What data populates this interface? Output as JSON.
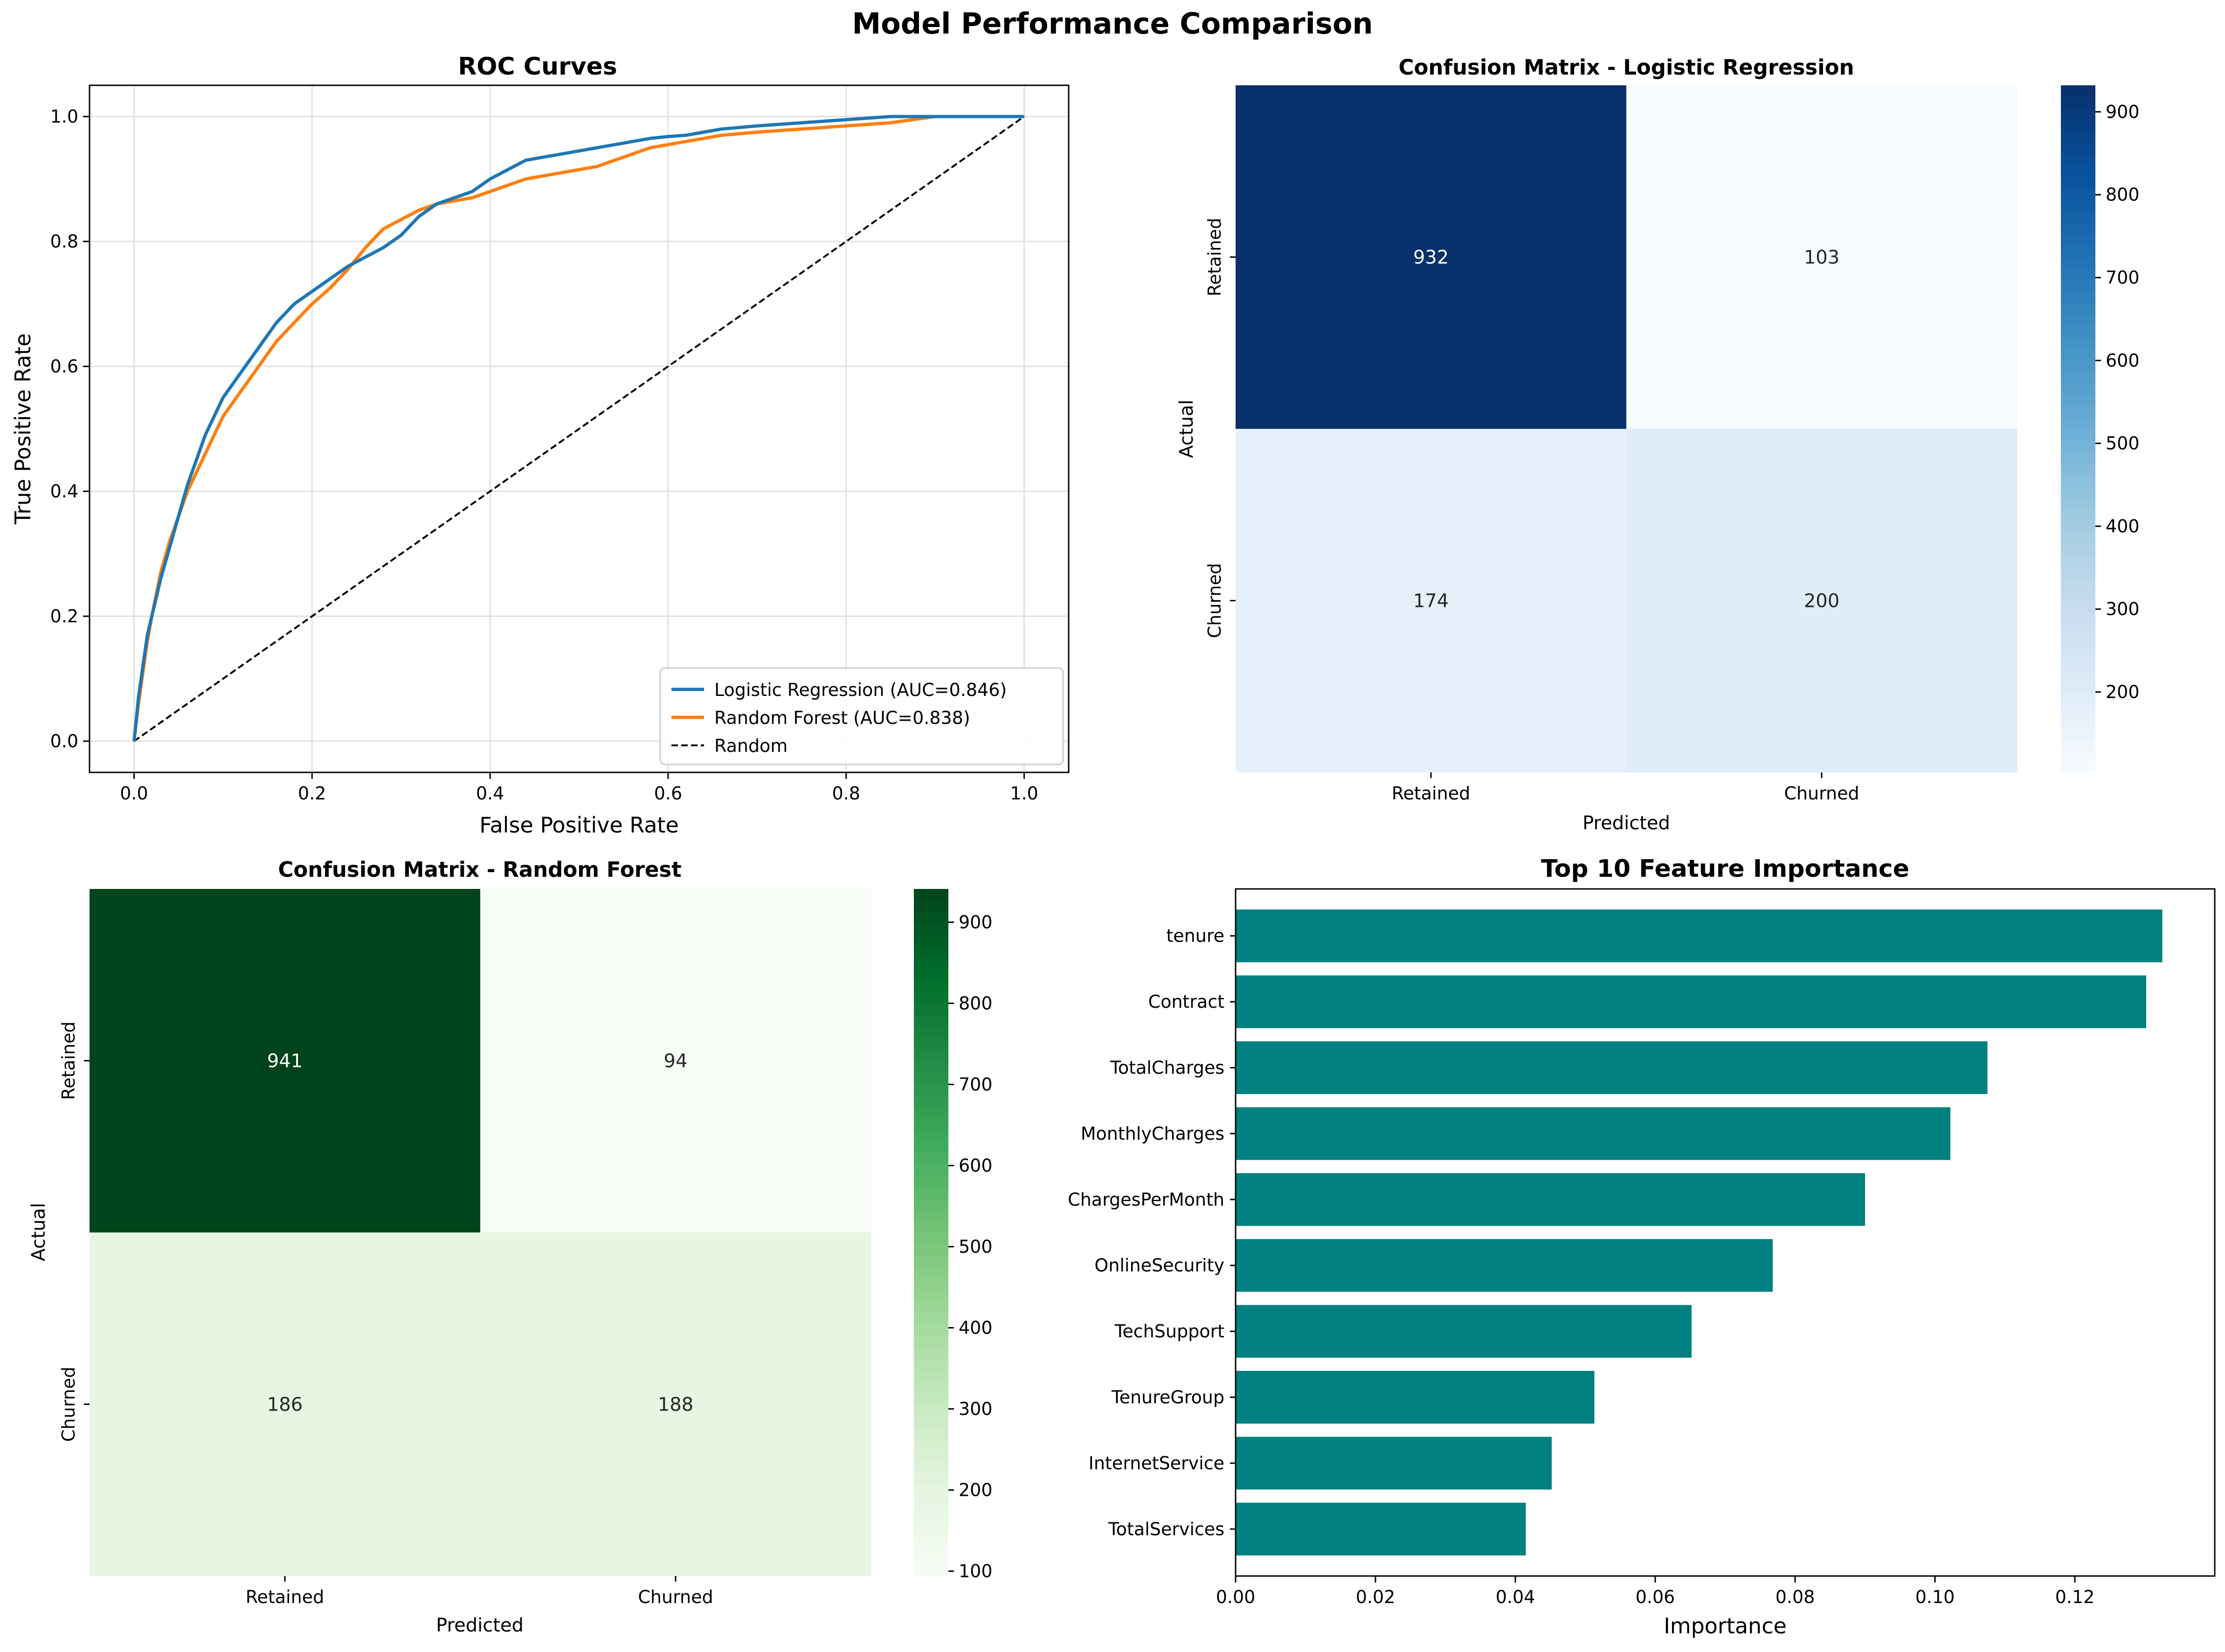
{
  "figure": {
    "title": "Model Performance Comparison"
  },
  "chart_data": [
    {
      "type": "line",
      "title": "ROC Curves",
      "xlabel": "False Positive Rate",
      "ylabel": "True Positive Rate",
      "xlim": [
        -0.05,
        1.05
      ],
      "ylim": [
        -0.05,
        1.05
      ],
      "x_ticks": [
        "0.0",
        "0.2",
        "0.4",
        "0.6",
        "0.8",
        "1.0"
      ],
      "y_ticks": [
        "0.0",
        "0.2",
        "0.4",
        "0.6",
        "0.8",
        "1.0"
      ],
      "grid": true,
      "legend": "lower-right",
      "series": [
        {
          "name": "Logistic Regression (AUC=0.846)",
          "color": "#1f77b4",
          "style": "solid",
          "x": [
            0,
            0.005,
            0.01,
            0.015,
            0.02,
            0.03,
            0.04,
            0.05,
            0.06,
            0.07,
            0.08,
            0.09,
            0.1,
            0.12,
            0.14,
            0.16,
            0.18,
            0.2,
            0.22,
            0.24,
            0.26,
            0.28,
            0.3,
            0.32,
            0.34,
            0.36,
            0.38,
            0.4,
            0.42,
            0.44,
            0.46,
            0.48,
            0.5,
            0.52,
            0.54,
            0.56,
            0.58,
            0.6,
            0.62,
            0.64,
            0.66,
            0.7,
            0.75,
            0.8,
            0.85,
            0.9,
            0.95,
            1.0
          ],
          "y": [
            0,
            0.07,
            0.12,
            0.17,
            0.2,
            0.26,
            0.31,
            0.36,
            0.41,
            0.45,
            0.49,
            0.52,
            0.55,
            0.59,
            0.63,
            0.67,
            0.7,
            0.72,
            0.74,
            0.76,
            0.775,
            0.79,
            0.81,
            0.84,
            0.86,
            0.87,
            0.88,
            0.9,
            0.915,
            0.93,
            0.935,
            0.94,
            0.945,
            0.95,
            0.955,
            0.96,
            0.965,
            0.968,
            0.97,
            0.975,
            0.98,
            0.985,
            0.99,
            0.995,
            1.0,
            1.0,
            1.0,
            1.0
          ]
        },
        {
          "name": "Random Forest (AUC=0.838)",
          "color": "#ff7f0e",
          "style": "solid",
          "x": [
            0,
            0.005,
            0.01,
            0.015,
            0.02,
            0.03,
            0.04,
            0.05,
            0.06,
            0.07,
            0.08,
            0.09,
            0.1,
            0.12,
            0.14,
            0.16,
            0.18,
            0.2,
            0.22,
            0.24,
            0.26,
            0.28,
            0.3,
            0.32,
            0.34,
            0.36,
            0.38,
            0.4,
            0.42,
            0.44,
            0.46,
            0.48,
            0.5,
            0.52,
            0.54,
            0.56,
            0.58,
            0.6,
            0.62,
            0.64,
            0.66,
            0.7,
            0.75,
            0.8,
            0.85,
            0.9,
            0.95,
            1.0
          ],
          "y": [
            0,
            0.06,
            0.11,
            0.16,
            0.2,
            0.27,
            0.32,
            0.36,
            0.4,
            0.43,
            0.46,
            0.49,
            0.52,
            0.56,
            0.6,
            0.64,
            0.67,
            0.7,
            0.725,
            0.755,
            0.79,
            0.82,
            0.835,
            0.85,
            0.86,
            0.865,
            0.87,
            0.88,
            0.89,
            0.9,
            0.905,
            0.91,
            0.915,
            0.92,
            0.93,
            0.94,
            0.95,
            0.955,
            0.96,
            0.965,
            0.97,
            0.975,
            0.98,
            0.985,
            0.99,
            1.0,
            1.0,
            1.0
          ]
        },
        {
          "name": "Random",
          "color": "#000000",
          "style": "dashed",
          "x": [
            0,
            1
          ],
          "y": [
            0,
            1
          ]
        }
      ]
    },
    {
      "type": "heatmap",
      "title": "Confusion Matrix - Logistic Regression",
      "xlabel": "Predicted",
      "ylabel": "Actual",
      "x_labels": [
        "Retained",
        "Churned"
      ],
      "y_labels": [
        "Retained",
        "Churned"
      ],
      "values": [
        [
          932,
          103
        ],
        [
          174,
          200
        ]
      ],
      "colormap": "Blues",
      "colorbar_ticks": [
        "200",
        "300",
        "400",
        "500",
        "600",
        "700",
        "800",
        "900"
      ]
    },
    {
      "type": "heatmap",
      "title": "Confusion Matrix - Random Forest",
      "xlabel": "Predicted",
      "ylabel": "Actual",
      "x_labels": [
        "Retained",
        "Churned"
      ],
      "y_labels": [
        "Retained",
        "Churned"
      ],
      "values": [
        [
          941,
          94
        ],
        [
          186,
          188
        ]
      ],
      "colormap": "Greens",
      "colorbar_ticks": [
        "100",
        "200",
        "300",
        "400",
        "500",
        "600",
        "700",
        "800",
        "900"
      ]
    },
    {
      "type": "bar",
      "orientation": "horizontal",
      "title": "Top 10 Feature Importance",
      "xlabel": "Importance",
      "ylabel": "",
      "categories": [
        "tenure",
        "Contract",
        "TotalCharges",
        "MonthlyCharges",
        "ChargesPerMonth",
        "OnlineSecurity",
        "TechSupport",
        "TenureGroup",
        "InternetService",
        "TotalServices"
      ],
      "values": [
        0.1325,
        0.1302,
        0.1075,
        0.1022,
        0.09,
        0.0768,
        0.0652,
        0.0513,
        0.0452,
        0.0415
      ],
      "xlim": [
        0,
        0.14
      ],
      "x_ticks": [
        "0.00",
        "0.02",
        "0.04",
        "0.06",
        "0.08",
        "0.10",
        "0.12"
      ],
      "color": "#008080"
    }
  ]
}
